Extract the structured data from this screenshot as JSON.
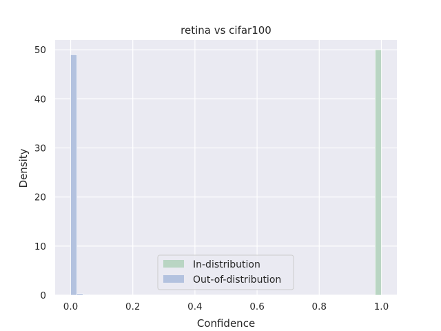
{
  "chart_data": {
    "type": "histogram",
    "title": "retina vs cifar100",
    "xlabel": "Confidence",
    "ylabel": "Density",
    "xlim": [
      -0.05,
      1.05
    ],
    "ylim": [
      0,
      52
    ],
    "xticks": [
      "0.0",
      "0.2",
      "0.4",
      "0.6",
      "0.8",
      "1.0"
    ],
    "yticks": [
      "0",
      "10",
      "20",
      "30",
      "40",
      "50"
    ],
    "grid": true,
    "legend_position": "lower center",
    "bin_width": 0.02,
    "series": [
      {
        "name": "In-distribution",
        "color": "#b9d5c3",
        "bins": [
          {
            "x": 0.98,
            "y": 50
          }
        ]
      },
      {
        "name": "Out-of-distribution",
        "color": "#b3c2df",
        "bins": [
          {
            "x": 0.0,
            "y": 49
          },
          {
            "x": 0.02,
            "y": 0.3
          },
          {
            "x": 0.04,
            "y": 0.1
          }
        ]
      }
    ]
  }
}
